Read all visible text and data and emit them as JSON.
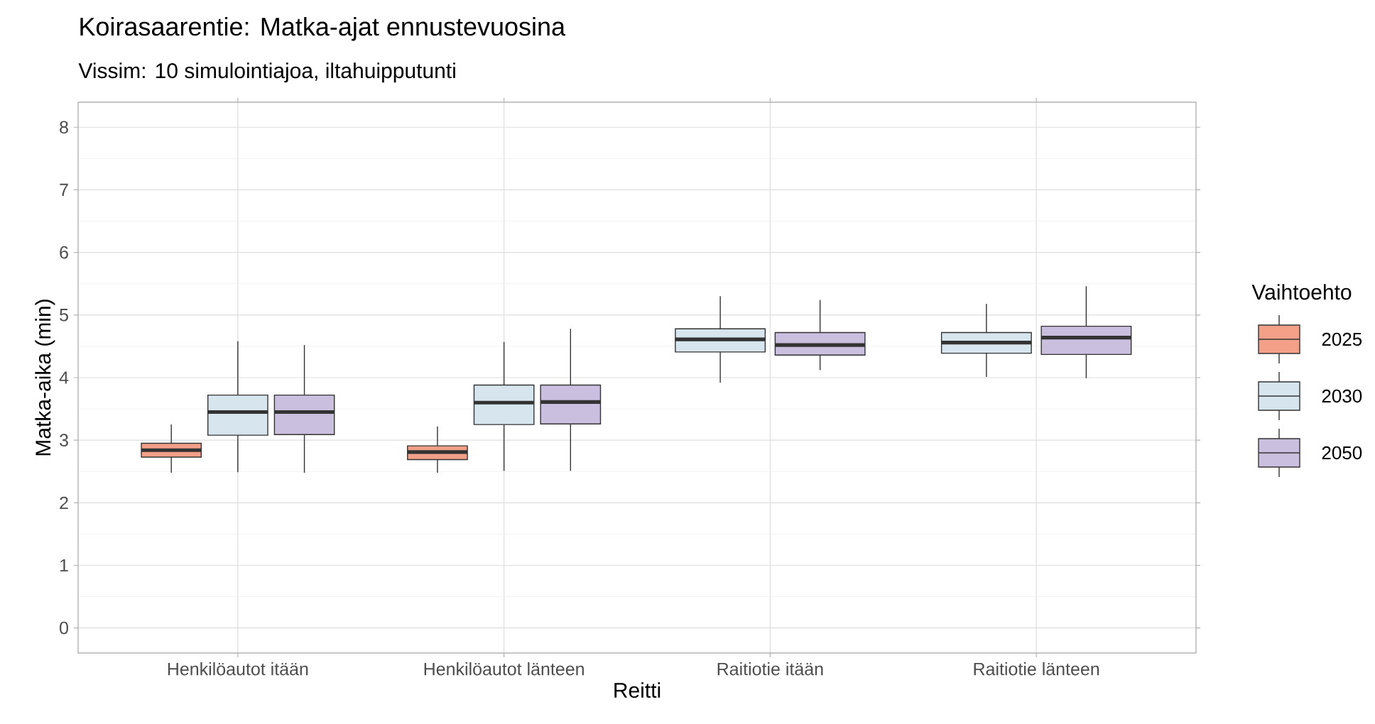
{
  "chart_data": {
    "type": "box",
    "title": "Koirasaarentie: Matka-ajat ennustevuosina",
    "subtitle": "Vissim: 10 simulointiajoa, iltahuipputunti",
    "xlabel": "Reitti",
    "ylabel": "Matka-aika (min)",
    "legend_title": "Vaihtoehto",
    "categories": [
      "Henkilöautot itään",
      "Henkilöautot länteen",
      "Raitiotie itään",
      "Raitiotie länteen"
    ],
    "series": [
      {
        "name": "2025",
        "color": "#f4a088",
        "boxes": [
          {
            "low": 2.48,
            "q1": 2.73,
            "median": 2.84,
            "q3": 2.95,
            "high": 3.25
          },
          {
            "low": 2.48,
            "q1": 2.69,
            "median": 2.81,
            "q3": 2.91,
            "high": 3.22
          },
          null,
          null
        ]
      },
      {
        "name": "2030",
        "color": "#d6e5ee",
        "boxes": [
          {
            "low": 2.49,
            "q1": 3.08,
            "median": 3.45,
            "q3": 3.72,
            "high": 4.58
          },
          {
            "low": 2.51,
            "q1": 3.25,
            "median": 3.6,
            "q3": 3.88,
            "high": 4.57
          },
          {
            "low": 3.92,
            "q1": 4.41,
            "median": 4.61,
            "q3": 4.78,
            "high": 5.3
          },
          {
            "low": 4.01,
            "q1": 4.39,
            "median": 4.56,
            "q3": 4.72,
            "high": 5.18
          }
        ]
      },
      {
        "name": "2050",
        "color": "#cbbfdf",
        "boxes": [
          {
            "low": 2.48,
            "q1": 3.09,
            "median": 3.45,
            "q3": 3.72,
            "high": 4.52
          },
          {
            "low": 2.51,
            "q1": 3.26,
            "median": 3.61,
            "q3": 3.88,
            "high": 4.78
          },
          {
            "low": 4.12,
            "q1": 4.36,
            "median": 4.52,
            "q3": 4.72,
            "high": 5.24
          },
          {
            "low": 3.99,
            "q1": 4.37,
            "median": 4.64,
            "q3": 4.82,
            "high": 5.46
          }
        ]
      }
    ],
    "ylim": [
      -0.4,
      8.4
    ],
    "yticks": [
      0,
      1,
      2,
      3,
      4,
      5,
      6,
      7,
      8
    ],
    "grid": true,
    "legend": "right"
  }
}
